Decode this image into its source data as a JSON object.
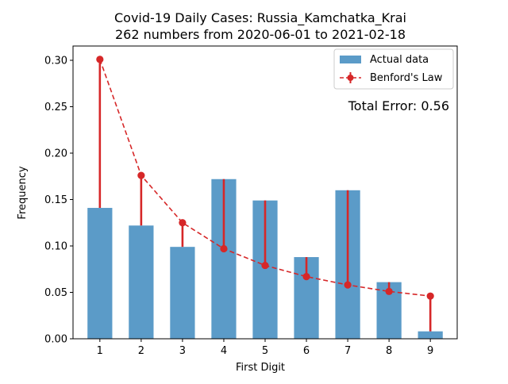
{
  "chart_data": {
    "type": "bar",
    "title_line1": "Covid-19 Daily Cases: Russia_Kamchatka_Krai",
    "title_line2": "262 numbers from 2020-06-01 to 2021-02-18",
    "xlabel": "First Digit",
    "ylabel": "Frequency",
    "categories": [
      "1",
      "2",
      "3",
      "4",
      "5",
      "6",
      "7",
      "8",
      "9"
    ],
    "x": [
      1,
      2,
      3,
      4,
      5,
      6,
      7,
      8,
      9
    ],
    "series": [
      {
        "name": "Actual data",
        "kind": "bar",
        "color": "#5b9bc8",
        "values": [
          0.141,
          0.122,
          0.099,
          0.172,
          0.149,
          0.088,
          0.16,
          0.061,
          0.008
        ]
      },
      {
        "name": "Benford's Law",
        "kind": "line-dashed-markers",
        "color": "#d62728",
        "values": [
          0.301,
          0.176,
          0.125,
          0.097,
          0.079,
          0.067,
          0.058,
          0.051,
          0.046
        ]
      }
    ],
    "error_bars": "vertical red lines from each Benford's Law point to the actual bar value",
    "annotation": "Total Error: 0.56",
    "annotation_color": "#d62728",
    "xlim": [
      0.35,
      9.65
    ],
    "ylim": [
      0,
      0.3
    ],
    "yticks": [
      0.0,
      0.05,
      0.1,
      0.15,
      0.2,
      0.25,
      0.3
    ],
    "ytick_labels": [
      "0.00",
      "0.05",
      "0.10",
      "0.15",
      "0.20",
      "0.25",
      "0.30"
    ],
    "grid": false,
    "legend_position": "top-right"
  }
}
